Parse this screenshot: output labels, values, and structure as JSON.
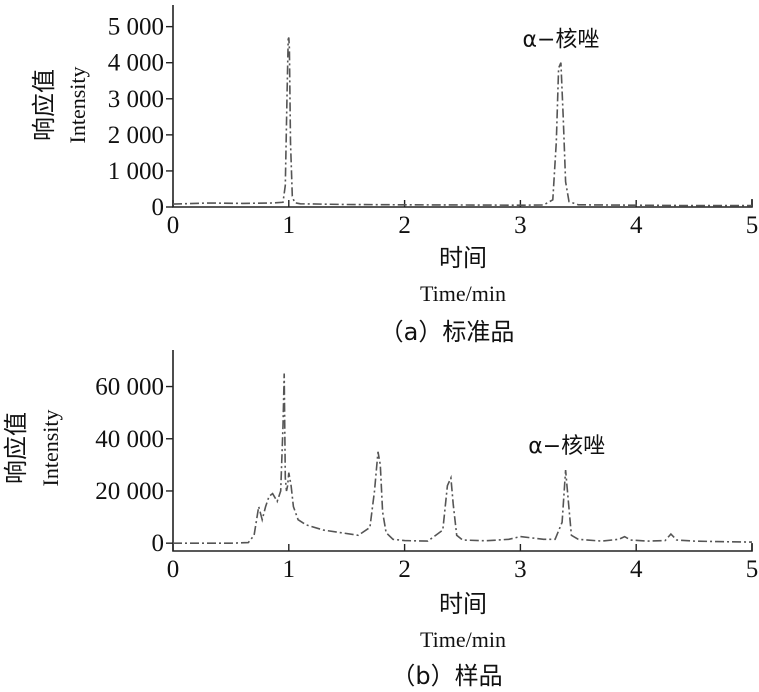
{
  "chart_data": [
    {
      "type": "line",
      "caption": "（a）标准品",
      "xlabel_cn": "时间",
      "xlabel_en": "Time/min",
      "ylabel_cn": "响应值",
      "ylabel_en": "Intensity",
      "xlim": [
        0,
        5
      ],
      "ylim": [
        0,
        5600
      ],
      "x_ticks": [
        0,
        1,
        2,
        3,
        4,
        5
      ],
      "x_tick_labels": [
        "0",
        "1",
        "2",
        "3",
        "4",
        "5"
      ],
      "y_ticks": [
        0,
        1000,
        2000,
        3000,
        4000,
        5000
      ],
      "y_tick_labels": [
        "0",
        "1 000",
        "2 000",
        "3 000",
        "4 000",
        "5 000"
      ],
      "annotation": {
        "text": "α−核唑",
        "x": 3.35,
        "y": 4450
      },
      "series": [
        {
          "x": [
            0,
            0.3,
            0.6,
            0.85,
            0.95,
            0.97,
            0.985,
            0.995,
            1.0,
            1.005,
            1.015,
            1.03,
            1.05,
            1.1,
            1.5,
            2.0,
            2.5,
            3.0,
            3.2,
            3.28,
            3.31,
            3.33,
            3.35,
            3.37,
            3.39,
            3.42,
            3.5,
            4.0,
            4.5,
            5.0
          ],
          "values": [
            80,
            110,
            100,
            110,
            130,
            600,
            3200,
            4650,
            4700,
            4400,
            1800,
            300,
            120,
            90,
            70,
            60,
            55,
            50,
            55,
            200,
            1800,
            3850,
            4000,
            2500,
            700,
            150,
            60,
            50,
            40,
            40
          ]
        }
      ]
    },
    {
      "type": "line",
      "caption": "（b）样品",
      "xlabel_cn": "时间",
      "xlabel_en": "Time/min",
      "ylabel_cn": "响应值",
      "ylabel_en": "Intensity",
      "xlim": [
        0,
        5
      ],
      "ylim": [
        -3000,
        74000
      ],
      "x_ticks": [
        0,
        1,
        2,
        3,
        4,
        5
      ],
      "x_tick_labels": [
        "0",
        "1",
        "2",
        "3",
        "4",
        "5"
      ],
      "y_ticks": [
        0,
        20000,
        40000,
        60000
      ],
      "y_tick_labels": [
        "0",
        "20 000",
        "40 000",
        "60 000"
      ],
      "annotation": {
        "text": "α−核唑",
        "x": 3.4,
        "y": 34500
      },
      "series": [
        {
          "x": [
            0,
            0.5,
            0.65,
            0.7,
            0.74,
            0.77,
            0.8,
            0.83,
            0.86,
            0.9,
            0.93,
            0.95,
            0.96,
            0.97,
            0.98,
            0.99,
            1.0,
            1.02,
            1.04,
            1.08,
            1.15,
            1.3,
            1.45,
            1.6,
            1.7,
            1.74,
            1.77,
            1.79,
            1.81,
            1.84,
            1.9,
            2.0,
            2.2,
            2.33,
            2.37,
            2.4,
            2.42,
            2.45,
            2.5,
            2.7,
            2.9,
            3.0,
            3.2,
            3.3,
            3.36,
            3.39,
            3.41,
            3.44,
            3.5,
            3.7,
            3.85,
            3.9,
            3.95,
            4.1,
            4.25,
            4.3,
            4.35,
            4.5,
            4.7,
            5.0
          ],
          "values": [
            0,
            0,
            200,
            3000,
            14000,
            9000,
            14000,
            18000,
            19000,
            16000,
            20000,
            45000,
            65000,
            25000,
            20000,
            22000,
            27000,
            22000,
            14000,
            9000,
            7000,
            5000,
            4000,
            3000,
            6000,
            20000,
            35000,
            30000,
            12000,
            4000,
            1500,
            1000,
            800,
            5000,
            22000,
            25000,
            15000,
            3000,
            1200,
            900,
            1500,
            2500,
            1500,
            1500,
            8000,
            28000,
            18000,
            3000,
            1500,
            800,
            1500,
            2500,
            1200,
            800,
            1000,
            3500,
            1200,
            800,
            600,
            400
          ]
        }
      ]
    }
  ]
}
